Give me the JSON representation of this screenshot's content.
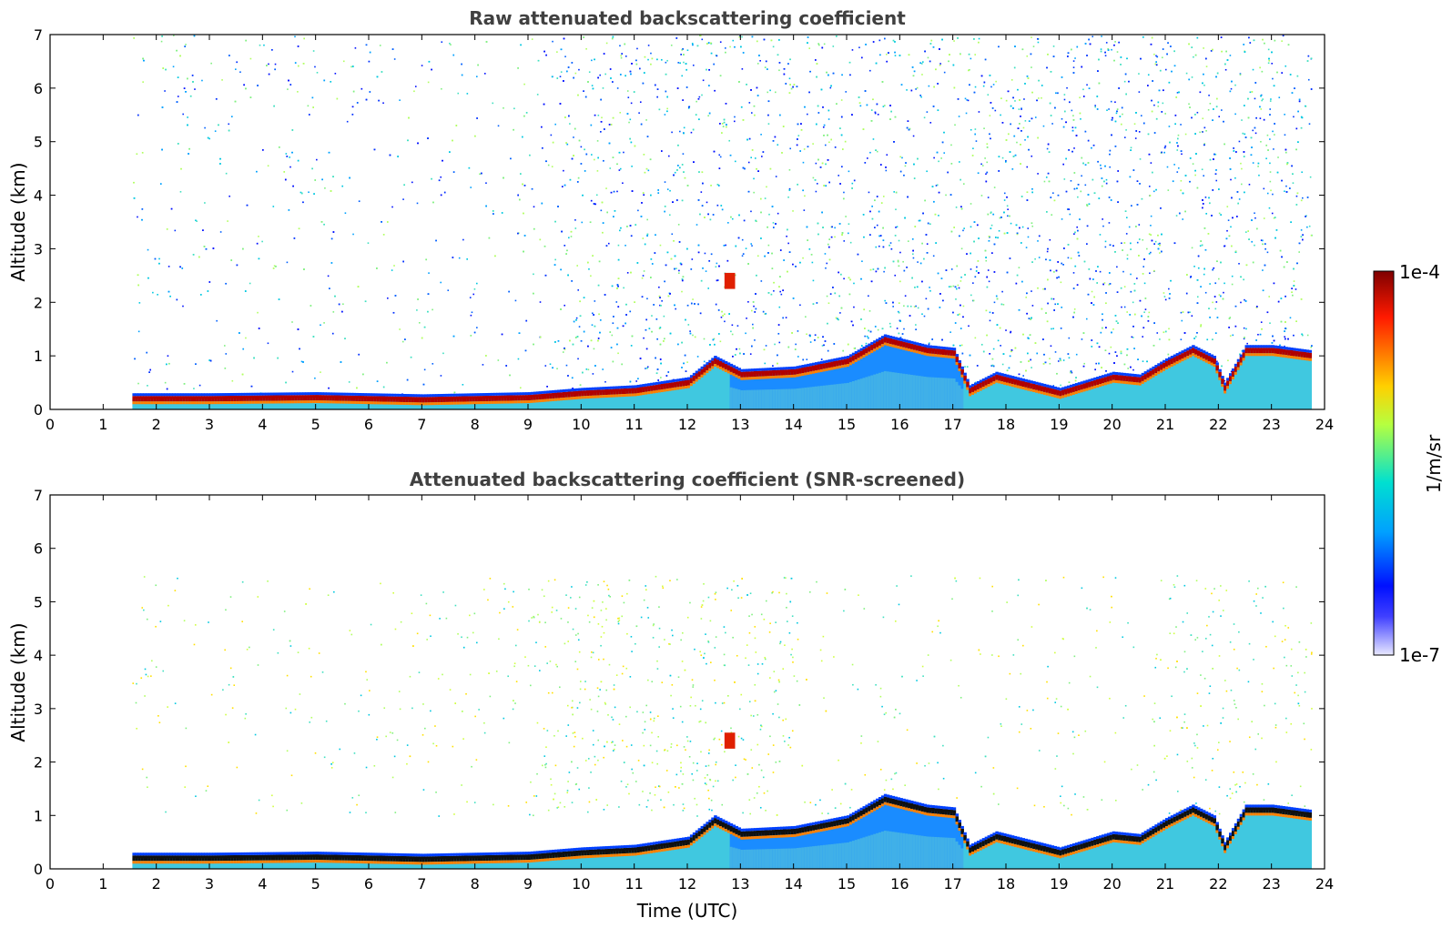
{
  "chart_data": [
    {
      "type": "heatmap",
      "title": "Raw attenuated backscattering coefficient",
      "xlabel": "",
      "ylabel": "Altitude (km)",
      "xlim": [
        0,
        24
      ],
      "ylim": [
        0,
        7
      ],
      "xticks": [
        0,
        1,
        2,
        3,
        4,
        5,
        6,
        7,
        8,
        9,
        10,
        11,
        12,
        13,
        14,
        15,
        16,
        17,
        18,
        19,
        20,
        21,
        22,
        23,
        24
      ],
      "yticks": [
        0,
        1,
        2,
        3,
        4,
        5,
        6,
        7
      ],
      "data_start_time": 1.55,
      "data_end_time": 23.75,
      "features": {
        "boundary_layer_top_km": [
          [
            1.55,
            0.2
          ],
          [
            3,
            0.2
          ],
          [
            5,
            0.22
          ],
          [
            7,
            0.18
          ],
          [
            9,
            0.22
          ],
          [
            10,
            0.3
          ],
          [
            11,
            0.35
          ],
          [
            12,
            0.5
          ],
          [
            12.5,
            0.9
          ],
          [
            13,
            0.65
          ],
          [
            14,
            0.7
          ],
          [
            15,
            0.9
          ],
          [
            15.7,
            1.3
          ],
          [
            16.5,
            1.1
          ],
          [
            17,
            1.05
          ],
          [
            17.3,
            0.35
          ],
          [
            17.8,
            0.6
          ],
          [
            18.2,
            0.5
          ],
          [
            19,
            0.3
          ],
          [
            19.5,
            0.45
          ],
          [
            20,
            0.6
          ],
          [
            20.5,
            0.55
          ],
          [
            21,
            0.85
          ],
          [
            21.5,
            1.1
          ],
          [
            21.9,
            0.9
          ],
          [
            22.1,
            0.4
          ],
          [
            22.5,
            1.1
          ],
          [
            23,
            1.1
          ],
          [
            23.75,
            1.0
          ]
        ],
        "elevated_layer": {
          "time_range": [
            12.7,
            12.9
          ],
          "altitude_km": 2.4
        }
      }
    },
    {
      "type": "heatmap",
      "title": "Attenuated backscattering coefficient (SNR-screened)",
      "xlabel": "Time (UTC)",
      "ylabel": "Altitude (km)",
      "xlim": [
        0,
        24
      ],
      "ylim": [
        0,
        7
      ],
      "xticks": [
        0,
        1,
        2,
        3,
        4,
        5,
        6,
        7,
        8,
        9,
        10,
        11,
        12,
        13,
        14,
        15,
        16,
        17,
        18,
        19,
        20,
        21,
        22,
        23,
        24
      ],
      "yticks": [
        0,
        1,
        2,
        3,
        4,
        5,
        6,
        7
      ],
      "data_start_time": 1.55,
      "data_end_time": 23.75
    }
  ],
  "colorbar": {
    "label": "1/m/sr",
    "max_label": "1e-4",
    "min_label": "1e-7",
    "colors": [
      "#800000",
      "#ff0000",
      "#ffff00",
      "#00ffff",
      "#0000ff",
      "#e6e6ff"
    ]
  }
}
